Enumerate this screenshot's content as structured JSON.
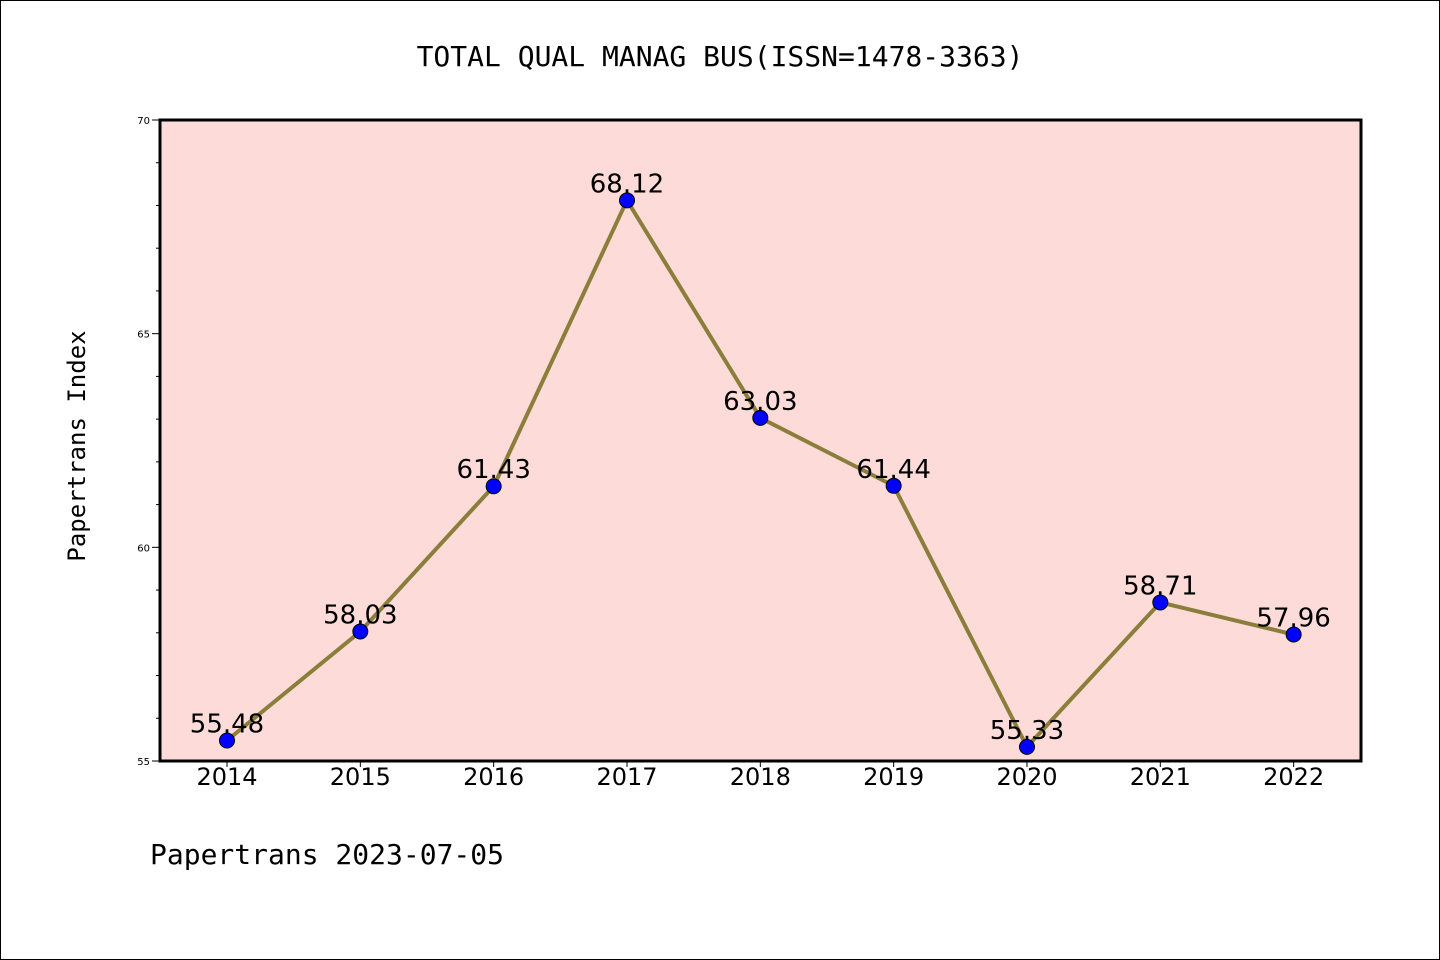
{
  "chart_data": {
    "type": "line",
    "title": "TOTAL QUAL MANAG BUS(ISSN=1478-3363)",
    "xlabel": "",
    "ylabel": "Papertrans Index",
    "categories": [
      "2014",
      "2015",
      "2016",
      "2017",
      "2018",
      "2019",
      "2020",
      "2021",
      "2022"
    ],
    "values": [
      55.48,
      58.03,
      61.43,
      68.12,
      63.03,
      61.44,
      55.33,
      58.71,
      57.96
    ],
    "value_labels": [
      "55.48",
      "58.03",
      "61.43",
      "68.12",
      "63.03",
      "61.44",
      "55.33",
      "58.71",
      "57.96"
    ],
    "ylim": [
      55,
      70
    ],
    "yticks": [
      "55",
      "60",
      "65",
      "70"
    ],
    "grid": false,
    "legend": "none",
    "colors": {
      "plot_background": "#fddbd8",
      "line": "#8b7d3a",
      "marker": "#0000ff"
    }
  },
  "footer": {
    "text": "Papertrans 2023-07-05"
  }
}
